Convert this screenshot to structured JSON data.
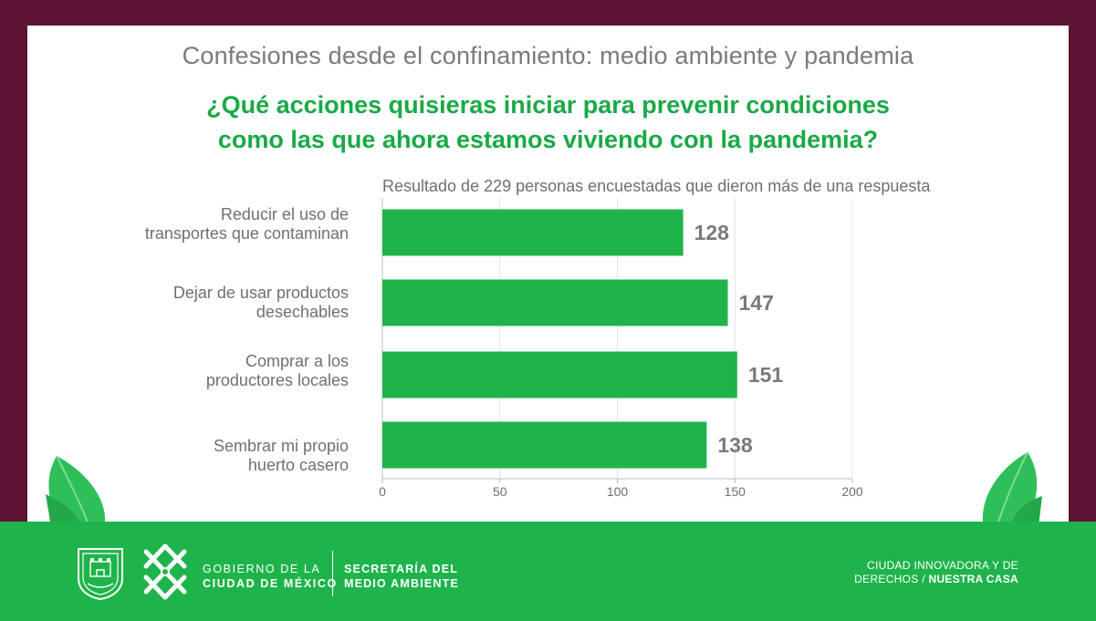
{
  "header": {
    "title": "Confesiones desde el confinamiento: medio ambiente y pandemia",
    "question_line1": "¿Qué acciones quisieras iniciar para prevenir condiciones",
    "question_line2": "como las que ahora estamos viviendo con la pandemia?"
  },
  "colors": {
    "frame": "#5e1434",
    "accent_green": "#1aa946",
    "bar_green": "#1fb44b",
    "footer_green": "#1fb44b",
    "text_gray": "#707070"
  },
  "chart_data": {
    "type": "bar",
    "orientation": "horizontal",
    "subtitle": "Resultado de 229 personas encuestadas que dieron más de una respuesta",
    "categories": [
      [
        "Reducir el uso de",
        "transportes que contaminan"
      ],
      [
        "Dejar de usar productos",
        "desechables"
      ],
      [
        "Comprar a los",
        "productores locales"
      ],
      [
        "Sembrar mi propio",
        "huerto casero"
      ]
    ],
    "values": [
      128,
      147,
      151,
      138
    ],
    "xlim": [
      0,
      200
    ],
    "xticks": [
      0,
      50,
      100,
      150,
      200
    ],
    "xlabel": "",
    "ylabel": "",
    "grid": true,
    "data_labels": true
  },
  "footer": {
    "gov_line1": "GOBIERNO DE LA",
    "gov_line2": "CIUDAD DE MÉXICO",
    "sec_line1": "SECRETARÍA DEL",
    "sec_line2": "MEDIO AMBIENTE",
    "slogan_line1": "CIUDAD INNOVADORA Y DE",
    "slogan_line2_a": "DERECHOS /",
    "slogan_line2_b": "NUESTRA CASA",
    "shield_icon": "cdmx-shield-icon",
    "logo_icon": "cdmx-logo-icon"
  }
}
